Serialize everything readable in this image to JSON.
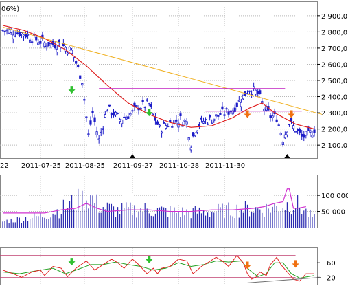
{
  "header": {
    "fragment": "06%)"
  },
  "colors": {
    "candle": "#1c1cc8",
    "ma": "#e02020",
    "trend": "#f0b020",
    "level": "#c020c0",
    "volume_bar": "#2a2ab0",
    "volume_line": "#d030d0",
    "osc_red": "#e02020",
    "osc_green": "#20a020",
    "osc_band": "#c04070",
    "arrow_up": "#30c030",
    "arrow_down": "#f07010",
    "marker": "#000000",
    "grid": "#b8b8b8"
  },
  "chart_data": [
    {
      "type": "candlestick",
      "name": "price",
      "ylim": [
        2020,
        2980
      ],
      "y_ticks": [
        "2 100,0",
        "2 200,0",
        "2 300,0",
        "2 400,0",
        "2 500,0",
        "2 600,0",
        "2 700,0",
        "2 800,0",
        "2 900,0"
      ],
      "x_ticks": [
        "22",
        "2011-07-25",
        "2011-08-25",
        "2011-09-27",
        "2011-10-28",
        "2011-11-30"
      ],
      "n_days": 150,
      "close_path": [
        [
          0,
          2810
        ],
        [
          10,
          2790
        ],
        [
          20,
          2730
        ],
        [
          28,
          2720
        ],
        [
          33,
          2680
        ],
        [
          38,
          2500
        ],
        [
          41,
          2160
        ],
        [
          43,
          2300
        ],
        [
          46,
          2130
        ],
        [
          50,
          2330
        ],
        [
          56,
          2260
        ],
        [
          62,
          2300
        ],
        [
          65,
          2340
        ],
        [
          70,
          2350
        ],
        [
          75,
          2200
        ],
        [
          80,
          2240
        ],
        [
          85,
          2260
        ],
        [
          88,
          2240
        ],
        [
          90,
          2110
        ],
        [
          92,
          2200
        ],
        [
          96,
          2250
        ],
        [
          100,
          2260
        ],
        [
          104,
          2290
        ],
        [
          110,
          2320
        ],
        [
          118,
          2450
        ],
        [
          122,
          2420
        ],
        [
          125,
          2330
        ],
        [
          128,
          2280
        ],
        [
          131,
          2270
        ],
        [
          134,
          2140
        ],
        [
          137,
          2240
        ],
        [
          140,
          2200
        ],
        [
          143,
          2150
        ],
        [
          146,
          2160
        ],
        [
          149,
          2200
        ]
      ],
      "moving_average": [
        [
          0,
          2840
        ],
        [
          10,
          2810
        ],
        [
          20,
          2760
        ],
        [
          30,
          2690
        ],
        [
          40,
          2590
        ],
        [
          50,
          2470
        ],
        [
          60,
          2360
        ],
        [
          70,
          2290
        ],
        [
          80,
          2240
        ],
        [
          90,
          2210
        ],
        [
          100,
          2220
        ],
        [
          110,
          2270
        ],
        [
          118,
          2330
        ],
        [
          124,
          2360
        ],
        [
          130,
          2300
        ],
        [
          140,
          2230
        ],
        [
          149,
          2200
        ]
      ],
      "trend_line": [
        [
          0,
          2830
        ],
        [
          150,
          2290
        ]
      ],
      "levels": [
        {
          "y": 2450,
          "from": 46,
          "to": 135
        },
        {
          "y": 2310,
          "from": 97,
          "to": 143
        },
        {
          "y": 2120,
          "from": 108,
          "to": 146
        }
      ],
      "arrows_up": [
        [
          33,
          2440
        ],
        [
          70,
          2300
        ]
      ],
      "arrows_down": [
        [
          117,
          2290
        ],
        [
          138,
          2290
        ]
      ],
      "markers": [
        62,
        136
      ]
    },
    {
      "type": "bar",
      "name": "volume",
      "ylim": [
        0,
        160000
      ],
      "y_ticks": [
        "50 000",
        "100 000"
      ],
      "volume_profile": [
        [
          0,
          20000
        ],
        [
          10,
          30000
        ],
        [
          20,
          40000
        ],
        [
          28,
          60000
        ],
        [
          35,
          85000
        ],
        [
          42,
          100000
        ],
        [
          46,
          70000
        ],
        [
          55,
          55000
        ],
        [
          65,
          60000
        ],
        [
          75,
          55000
        ],
        [
          85,
          50000
        ],
        [
          95,
          50000
        ],
        [
          105,
          55000
        ],
        [
          115,
          60000
        ],
        [
          125,
          60000
        ],
        [
          133,
          70000
        ],
        [
          140,
          80000
        ],
        [
          146,
          45000
        ],
        [
          149,
          30000
        ]
      ],
      "overlay_line": [
        [
          0,
          45000
        ],
        [
          10,
          45000
        ],
        [
          20,
          45000
        ],
        [
          28,
          55000
        ],
        [
          35,
          60000
        ],
        [
          40,
          75000
        ],
        [
          45,
          60000
        ],
        [
          50,
          50000
        ],
        [
          60,
          55000
        ],
        [
          70,
          55000
        ],
        [
          80,
          50000
        ],
        [
          90,
          50000
        ],
        [
          100,
          55000
        ],
        [
          110,
          55000
        ],
        [
          120,
          60000
        ],
        [
          125,
          65000
        ],
        [
          130,
          75000
        ],
        [
          134,
          80000
        ],
        [
          136,
          120000
        ],
        [
          137,
          120000
        ],
        [
          139,
          60000
        ],
        [
          141,
          60000
        ],
        [
          145,
          65000
        ]
      ]
    },
    {
      "type": "line",
      "name": "oscillator",
      "ylim": [
        0,
        100
      ],
      "y_ticks": [
        "20",
        "60"
      ],
      "bands": [
        20,
        80
      ],
      "red": [
        [
          0,
          40
        ],
        [
          5,
          30
        ],
        [
          9,
          20
        ],
        [
          14,
          35
        ],
        [
          18,
          40
        ],
        [
          20,
          25
        ],
        [
          24,
          50
        ],
        [
          28,
          45
        ],
        [
          31,
          22
        ],
        [
          35,
          45
        ],
        [
          40,
          65
        ],
        [
          44,
          40
        ],
        [
          48,
          55
        ],
        [
          52,
          70
        ],
        [
          55,
          60
        ],
        [
          58,
          45
        ],
        [
          62,
          70
        ],
        [
          65,
          55
        ],
        [
          69,
          30
        ],
        [
          72,
          45
        ],
        [
          74,
          30
        ],
        [
          76,
          45
        ],
        [
          80,
          50
        ],
        [
          84,
          70
        ],
        [
          88,
          65
        ],
        [
          91,
          30
        ],
        [
          95,
          50
        ],
        [
          98,
          60
        ],
        [
          102,
          75
        ],
        [
          105,
          65
        ],
        [
          108,
          50
        ],
        [
          112,
          80
        ],
        [
          115,
          60
        ],
        [
          117,
          30
        ],
        [
          119,
          15
        ],
        [
          121,
          20
        ],
        [
          123,
          35
        ],
        [
          126,
          25
        ],
        [
          128,
          55
        ],
        [
          131,
          75
        ],
        [
          133,
          55
        ],
        [
          136,
          35
        ],
        [
          139,
          15
        ],
        [
          142,
          10
        ],
        [
          145,
          30
        ],
        [
          149,
          30
        ]
      ],
      "green": [
        [
          0,
          35
        ],
        [
          8,
          30
        ],
        [
          16,
          38
        ],
        [
          24,
          45
        ],
        [
          30,
          30
        ],
        [
          36,
          42
        ],
        [
          42,
          55
        ],
        [
          48,
          55
        ],
        [
          54,
          62
        ],
        [
          60,
          55
        ],
        [
          66,
          50
        ],
        [
          72,
          40
        ],
        [
          78,
          45
        ],
        [
          84,
          60
        ],
        [
          90,
          50
        ],
        [
          96,
          55
        ],
        [
          102,
          65
        ],
        [
          108,
          62
        ],
        [
          114,
          65
        ],
        [
          118,
          40
        ],
        [
          122,
          22
        ],
        [
          126,
          30
        ],
        [
          130,
          60
        ],
        [
          134,
          60
        ],
        [
          138,
          30
        ],
        [
          142,
          18
        ],
        [
          146,
          22
        ],
        [
          149,
          25
        ]
      ],
      "trend_line": [
        [
          117,
          5
        ],
        [
          150,
          20
        ]
      ],
      "arrows_up": [
        [
          33,
          62
        ],
        [
          70,
          68
        ]
      ],
      "arrows_down": [
        [
          117,
          52
        ],
        [
          140,
          56
        ]
      ]
    }
  ]
}
